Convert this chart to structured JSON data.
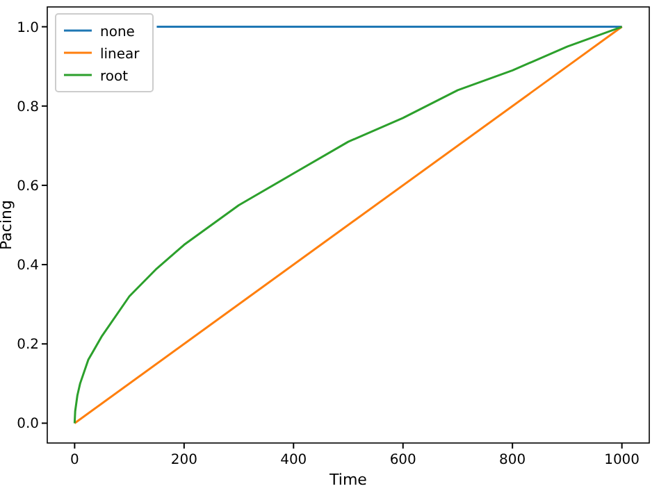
{
  "chart_data": {
    "type": "line",
    "xlabel": "Time",
    "ylabel": "Pacing",
    "xlim": [
      -50,
      1050
    ],
    "ylim": [
      -0.05,
      1.05
    ],
    "xticks": [
      0,
      200,
      400,
      600,
      800,
      1000
    ],
    "yticks": [
      {
        "value": 0,
        "label": "0.0"
      },
      {
        "value": 0.2,
        "label": "0.2"
      },
      {
        "value": 0.4,
        "label": "0.4"
      },
      {
        "value": 0.6,
        "label": "0.6"
      },
      {
        "value": 0.8,
        "label": "0.8"
      },
      {
        "value": 1,
        "label": "1.0"
      }
    ],
    "legend": "top left",
    "grid": false,
    "series": [
      {
        "name": "none",
        "color": "#1f77b4",
        "x": [
          150,
          1000
        ],
        "values": [
          1,
          1
        ]
      },
      {
        "name": "linear",
        "color": "#ff7f0e",
        "x": [
          0,
          1000
        ],
        "values": [
          0,
          1
        ]
      },
      {
        "name": "root",
        "color": "#2ca02c",
        "x": [
          0,
          1,
          5,
          10,
          25,
          50,
          100,
          150,
          200,
          300,
          400,
          500,
          600,
          700,
          800,
          900,
          1000
        ],
        "values": [
          0,
          0.03,
          0.07,
          0.1,
          0.16,
          0.22,
          0.32,
          0.39,
          0.45,
          0.55,
          0.63,
          0.71,
          0.77,
          0.84,
          0.89,
          0.95,
          1
        ]
      }
    ]
  }
}
